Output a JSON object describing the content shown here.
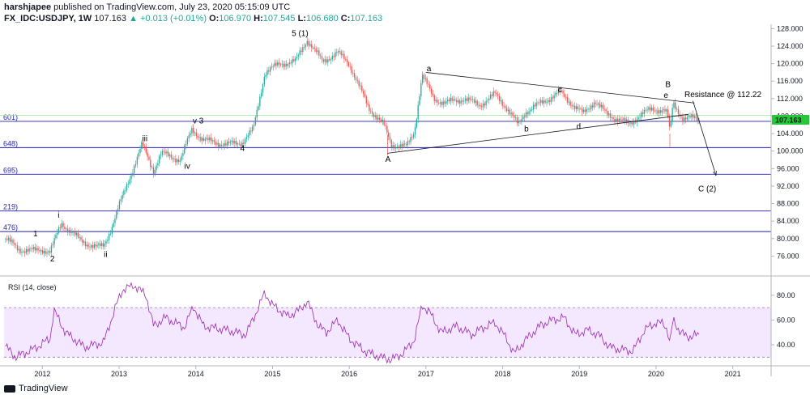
{
  "header": {
    "author": "harshjapee",
    "published": " published on TradingView.com, July 23, 2020 05:15:09 UTC",
    "symbol": "FX_IDC:USDJPY, 1W",
    "last": " 107.163",
    "change": "+0.013 (+0.01%)",
    "o_label": " O:",
    "open": "106.970",
    "h_label": " H:",
    "high": "107.545",
    "l_label": " L:",
    "low": "106.680",
    "c_label": " C:",
    "close": "107.163"
  },
  "brand": "TradingView",
  "colors": {
    "up": "#26a69a",
    "down": "#ef5350",
    "fib": "#1f1fb8",
    "rsi": "#9c27b0",
    "last_tag": "#26c738",
    "trend": "#131722"
  },
  "rsi": {
    "title": "RSI (14, close)",
    "upper": 70,
    "lower": 30
  },
  "chart_data": {
    "type": "candlestick",
    "symbol": "FX_IDC:USDJPY",
    "interval": "1W",
    "ylim": [
      72,
      129
    ],
    "xlim": [
      2011.5,
      2021.5
    ],
    "price_ticks": [
      76,
      80,
      84,
      88,
      92,
      96,
      100,
      104,
      108,
      112,
      116,
      120,
      124,
      128
    ],
    "price_tick_labels": [
      "76.000",
      "80.000",
      "84.000",
      "88.000",
      "92.000",
      "96.000",
      "100.000",
      "104.000",
      "108.000",
      "112.000",
      "116.000",
      "120.000",
      "124.000",
      "128.000"
    ],
    "time_ticks": [
      2012,
      2013,
      2014,
      2015,
      2016,
      2017,
      2018,
      2019,
      2020,
      2021
    ],
    "time_tick_labels": [
      "2012",
      "2013",
      "2014",
      "2015",
      "2016",
      "2017",
      "2018",
      "2019",
      "2020",
      "2021"
    ],
    "last_price": 107.163,
    "last_price_label": "107.163",
    "path_anchors": [
      [
        2011.5,
        80.2
      ],
      [
        2011.7,
        77.5
      ],
      [
        2011.9,
        77.2
      ],
      [
        2012.0,
        77.5
      ],
      [
        2012.1,
        77.0
      ],
      [
        2012.25,
        83.5
      ],
      [
        2012.5,
        79.5
      ],
      [
        2012.7,
        78.0
      ],
      [
        2012.8,
        78.3
      ],
      [
        2012.9,
        82.5
      ],
      [
        2013.0,
        87.5
      ],
      [
        2013.15,
        94.5
      ],
      [
        2013.3,
        101.5
      ],
      [
        2013.45,
        95.5
      ],
      [
        2013.55,
        99.5
      ],
      [
        2013.8,
        98.0
      ],
      [
        2013.95,
        105.0
      ],
      [
        2014.1,
        102.5
      ],
      [
        2014.4,
        101.5
      ],
      [
        2014.6,
        102.0
      ],
      [
        2014.75,
        105.0
      ],
      [
        2014.9,
        118.0
      ],
      [
        2015.1,
        120.0
      ],
      [
        2015.3,
        120.5
      ],
      [
        2015.45,
        125.5
      ],
      [
        2015.65,
        120.5
      ],
      [
        2015.85,
        122.5
      ],
      [
        2016.0,
        120.0
      ],
      [
        2016.25,
        110.0
      ],
      [
        2016.45,
        106.0
      ],
      [
        2016.55,
        101.5
      ],
      [
        2016.75,
        101.0
      ],
      [
        2016.85,
        104.5
      ],
      [
        2016.95,
        117.5
      ],
      [
        2017.1,
        112.0
      ],
      [
        2017.25,
        111.0
      ],
      [
        2017.5,
        112.0
      ],
      [
        2017.7,
        110.5
      ],
      [
        2017.9,
        113.0
      ],
      [
        2018.05,
        110.0
      ],
      [
        2018.2,
        106.0
      ],
      [
        2018.3,
        109.0
      ],
      [
        2018.5,
        111.0
      ],
      [
        2018.75,
        113.5
      ],
      [
        2018.95,
        110.0
      ],
      [
        2019.05,
        108.5
      ],
      [
        2019.2,
        111.5
      ],
      [
        2019.35,
        108.5
      ],
      [
        2019.55,
        107.0
      ],
      [
        2019.65,
        106.0
      ],
      [
        2019.8,
        108.5
      ],
      [
        2019.95,
        109.5
      ],
      [
        2020.1,
        109.5
      ],
      [
        2020.15,
        108.5
      ],
      [
        2020.18,
        104.0
      ],
      [
        2020.22,
        111.0
      ],
      [
        2020.35,
        107.5
      ],
      [
        2020.5,
        107.5
      ],
      [
        2020.56,
        107.16
      ]
    ],
    "spikes": [
      [
        2016.5,
        99.0
      ],
      [
        2020.18,
        101.0
      ]
    ],
    "rsi_anchors": [
      [
        2011.5,
        40
      ],
      [
        2011.65,
        30
      ],
      [
        2011.9,
        37
      ],
      [
        2012.1,
        45
      ],
      [
        2012.15,
        68
      ],
      [
        2012.3,
        50
      ],
      [
        2012.55,
        38
      ],
      [
        2012.8,
        42
      ],
      [
        2012.95,
        70
      ],
      [
        2013.05,
        85
      ],
      [
        2013.2,
        88
      ],
      [
        2013.35,
        80
      ],
      [
        2013.45,
        55
      ],
      [
        2013.6,
        62
      ],
      [
        2013.85,
        54
      ],
      [
        2013.97,
        71
      ],
      [
        2014.1,
        55
      ],
      [
        2014.4,
        52
      ],
      [
        2014.65,
        48
      ],
      [
        2014.8,
        68
      ],
      [
        2014.9,
        82
      ],
      [
        2015.0,
        72
      ],
      [
        2015.2,
        63
      ],
      [
        2015.35,
        68
      ],
      [
        2015.45,
        75
      ],
      [
        2015.6,
        55
      ],
      [
        2015.7,
        50
      ],
      [
        2015.85,
        60
      ],
      [
        2016.0,
        45
      ],
      [
        2016.2,
        35
      ],
      [
        2016.4,
        30
      ],
      [
        2016.55,
        28
      ],
      [
        2016.7,
        33
      ],
      [
        2016.85,
        44
      ],
      [
        2016.95,
        72
      ],
      [
        2017.05,
        66
      ],
      [
        2017.2,
        50
      ],
      [
        2017.4,
        55
      ],
      [
        2017.6,
        48
      ],
      [
        2017.75,
        54
      ],
      [
        2017.9,
        58
      ],
      [
        2018.05,
        45
      ],
      [
        2018.15,
        33
      ],
      [
        2018.3,
        44
      ],
      [
        2018.5,
        56
      ],
      [
        2018.65,
        60
      ],
      [
        2018.8,
        62
      ],
      [
        2018.95,
        48
      ],
      [
        2019.1,
        52
      ],
      [
        2019.25,
        48
      ],
      [
        2019.4,
        38
      ],
      [
        2019.55,
        36
      ],
      [
        2019.7,
        35
      ],
      [
        2019.85,
        52
      ],
      [
        2020.0,
        58
      ],
      [
        2020.1,
        57
      ],
      [
        2020.15,
        52
      ],
      [
        2020.18,
        40
      ],
      [
        2020.22,
        60
      ],
      [
        2020.3,
        52
      ],
      [
        2020.4,
        46
      ],
      [
        2020.5,
        48
      ],
      [
        2020.56,
        47
      ]
    ],
    "rsi_ylim": [
      23,
      93
    ],
    "rsi_ticks": [
      40,
      60,
      80
    ],
    "rsi_tick_labels": [
      "40.00",
      "60.00",
      "80.00"
    ],
    "fib_levels": [
      {
        "label": "601)",
        "value": 106.8
      },
      {
        "label": "648)",
        "value": 100.8
      },
      {
        "label": "695)",
        "value": 94.7
      },
      {
        "label": "219)",
        "value": 86.3
      },
      {
        "label": "476)",
        "value": 81.6
      }
    ],
    "fib_extra": [
      108.2
    ],
    "trendlines": [
      {
        "from": [
          2017.0,
          118.0
        ],
        "to": [
          2020.5,
          111.0
        ]
      },
      {
        "from": [
          2016.5,
          99.5
        ],
        "to": [
          2020.42,
          108.4
        ]
      },
      {
        "from": [
          2020.48,
          111.5
        ],
        "to": [
          2020.78,
          94.5
        ],
        "arrow": true
      }
    ],
    "annotations": [
      {
        "text": "1",
        "x": 2011.88,
        "y": 80.5
      },
      {
        "text": "2",
        "x": 2012.1,
        "y": 74.8
      },
      {
        "text": "i",
        "x": 2012.2,
        "y": 84.8
      },
      {
        "text": "ii",
        "x": 2012.8,
        "y": 75.8
      },
      {
        "text": "iii",
        "x": 2013.3,
        "y": 102.3
      },
      {
        "text": "iv",
        "x": 2013.85,
        "y": 96.0
      },
      {
        "text": "v 3",
        "x": 2013.96,
        "y": 106.3
      },
      {
        "text": "4",
        "x": 2014.58,
        "y": 100.0
      },
      {
        "text": "5 (1)",
        "x": 2015.25,
        "y": 126.3
      },
      {
        "text": "a",
        "x": 2017.01,
        "y": 118.3
      },
      {
        "text": "A",
        "x": 2016.47,
        "y": 97.5
      },
      {
        "text": "b",
        "x": 2018.28,
        "y": 104.5
      },
      {
        "text": "c",
        "x": 2018.72,
        "y": 113.5
      },
      {
        "text": "d",
        "x": 2018.96,
        "y": 105.0
      },
      {
        "text": "B",
        "x": 2020.12,
        "y": 114.7
      },
      {
        "text": "e",
        "x": 2020.1,
        "y": 112.2
      },
      {
        "text": "Resistance @ 112.22",
        "x": 2020.37,
        "y": 112.3
      },
      {
        "text": "C (2)",
        "x": 2020.55,
        "y": 90.8
      }
    ]
  }
}
